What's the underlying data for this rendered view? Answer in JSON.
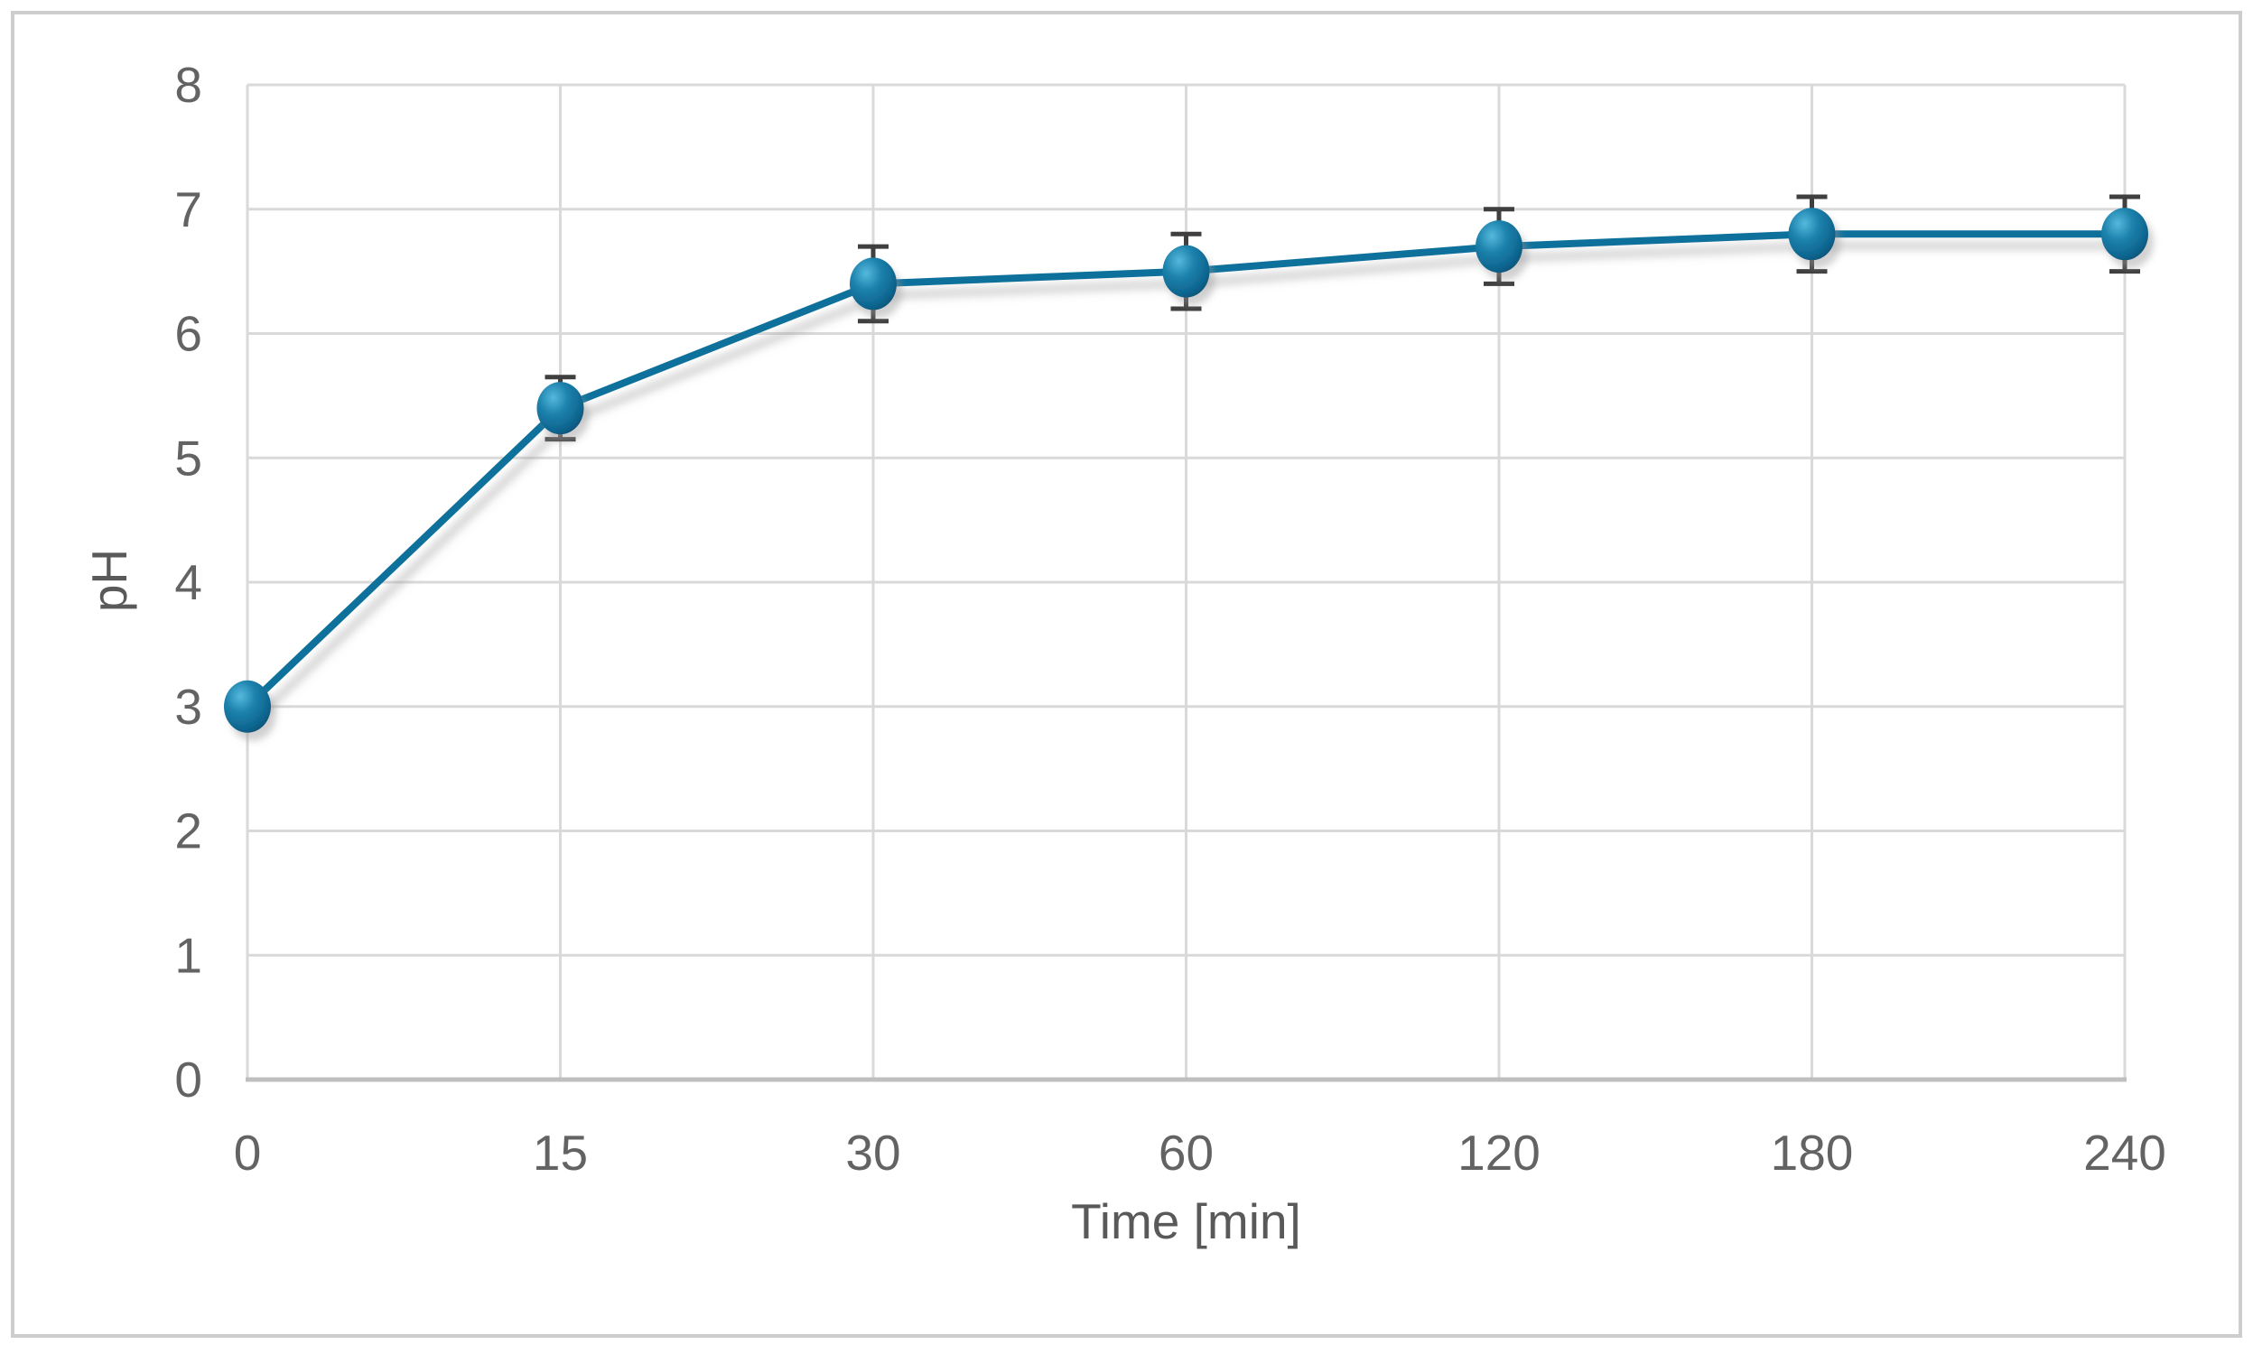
{
  "chart_data": {
    "type": "line",
    "categories": [
      "0",
      "15",
      "30",
      "60",
      "120",
      "180",
      "240"
    ],
    "series": [
      {
        "name": "pH",
        "values": [
          3.0,
          5.4,
          6.4,
          6.5,
          6.7,
          6.8,
          6.8
        ],
        "errors": [
          0,
          0.25,
          0.3,
          0.3,
          0.3,
          0.3,
          0.3
        ]
      }
    ],
    "title": "",
    "xlabel": "Time [min]",
    "ylabel": "pH",
    "ylim": [
      0,
      8
    ],
    "yticks": [
      0,
      1,
      2,
      3,
      4,
      5,
      6,
      7,
      8
    ],
    "grid": true,
    "legend_position": "none",
    "marker_style": "3d-sphere",
    "error_bar_style": "capped-whisker"
  },
  "colors": {
    "line": "#10719C",
    "marker_highlight": "#55B9DC",
    "marker_mid": "#1C82AC",
    "marker_deep": "#0E6690",
    "marker_edge": "#0A4E71",
    "error_bar": "#3F3F3F",
    "gridline": "#D9D9D9",
    "axis_line": "#BFBFBF",
    "tick_label": "#636363",
    "axis_title": "#595959",
    "frame_border": "#CDCDCD",
    "background": "#FFFFFF",
    "shadow": "#999999"
  }
}
